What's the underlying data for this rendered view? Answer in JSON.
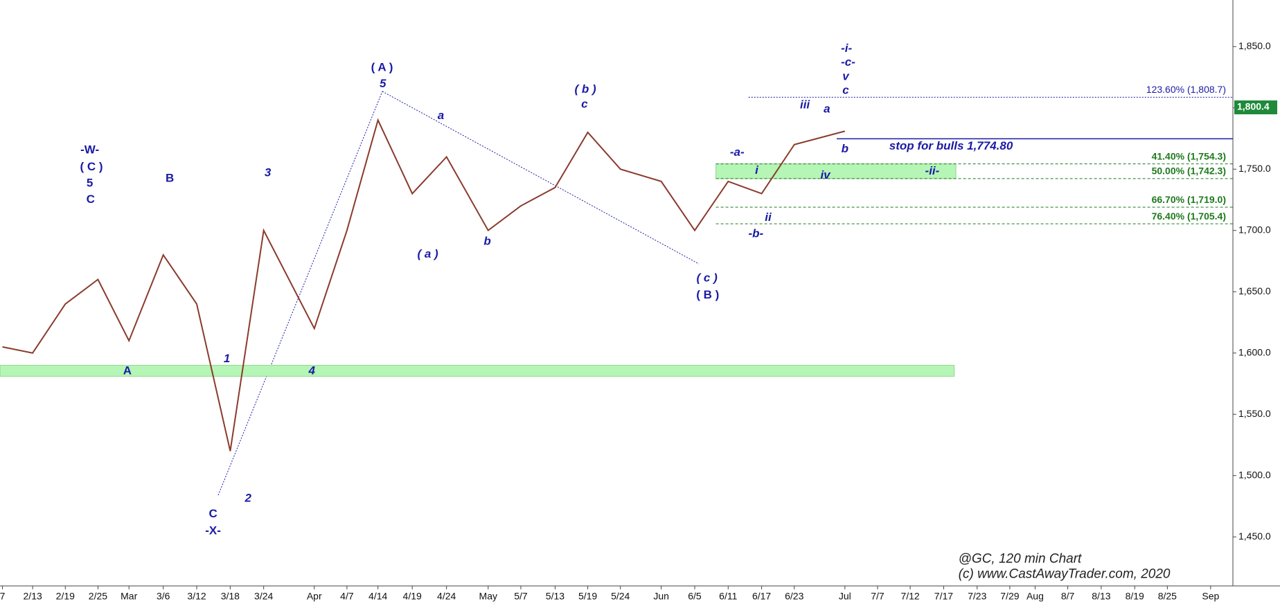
{
  "chart_data": {
    "type": "line",
    "categories": [
      "7",
      "2/13",
      "2/19",
      "2/25",
      "Mar",
      "3/6",
      "3/12",
      "3/18",
      "3/24",
      "Apr",
      "4/7",
      "4/14",
      "4/19",
      "4/24",
      "May",
      "5/7",
      "5/13",
      "5/19",
      "5/24",
      "Jun",
      "6/5",
      "6/11",
      "6/17",
      "6/23",
      "Jul",
      "7/7",
      "7/12",
      "7/17",
      "7/23",
      "7/29",
      "Aug",
      "8/7",
      "8/13",
      "8/19",
      "8/25",
      "Sep"
    ],
    "values": [
      1605,
      1600,
      1640,
      1660,
      1610,
      1680,
      1640,
      1520,
      1700,
      1620,
      1700,
      1790,
      1730,
      1760,
      1700,
      1720,
      1735,
      1780,
      1750,
      1740,
      1700,
      1740,
      1730,
      1770,
      1781,
      null,
      null,
      null,
      null,
      null,
      null,
      null,
      null,
      null,
      null,
      null
    ],
    "color": "#8a3a2c",
    "ylim": [
      1410,
      1888
    ],
    "yticks": [
      {
        "value": 1450,
        "label": "1,450.0"
      },
      {
        "value": 1500,
        "label": "1,500.0"
      },
      {
        "value": 1550,
        "label": "1,550.0"
      },
      {
        "value": 1600,
        "label": "1,600.0"
      },
      {
        "value": 1650,
        "label": "1,650.0"
      },
      {
        "value": 1700,
        "label": "1,700.0"
      },
      {
        "value": 1750,
        "label": "1,750.0"
      },
      {
        "value": 1800,
        "label": "1,800.0"
      },
      {
        "value": 1850,
        "label": "1,850.0"
      }
    ],
    "levels": [
      {
        "value": 1808.7,
        "label": "123.60% (1,808.7)",
        "color": "#1a1aa6"
      },
      {
        "value": 1754.3,
        "label": "41.40% (1,754.3)",
        "color": "#1d7a1d"
      },
      {
        "value": 1742.3,
        "label": "50.00% (1,742.3)",
        "color": "#1d7a1d"
      },
      {
        "value": 1719.0,
        "label": "66.70% (1,719.0)",
        "color": "#1d7a1d"
      },
      {
        "value": 1705.4,
        "label": "76.40% (1,705.4)",
        "color": "#1d7a1d"
      }
    ],
    "stop": {
      "value": 1774.8,
      "label": "stop for bulls 1,774.80"
    },
    "last_price": {
      "value": 1800.4,
      "label": "1,800.4"
    },
    "zones": [
      {
        "from": 1581,
        "to": 1590
      },
      {
        "from": 1742.3,
        "to": 1754.3
      }
    ],
    "annotations": [
      "-W-",
      "( C )",
      "5",
      "C",
      "B",
      "A",
      "C",
      "-X-",
      "1",
      "2",
      "3",
      "4",
      "( A )",
      "5",
      "a",
      "( a )",
      "b",
      "( b )",
      "c",
      "( c )",
      "( B )",
      "-a-",
      "-b-",
      "i",
      "ii",
      "iii",
      "iv",
      "a",
      "b",
      "-ii-",
      "-i-",
      "-c-",
      "v",
      "c"
    ],
    "watermark": [
      "@GC, 120 min Chart",
      "(c) www.CastAwayTrader.com, 2020"
    ]
  }
}
